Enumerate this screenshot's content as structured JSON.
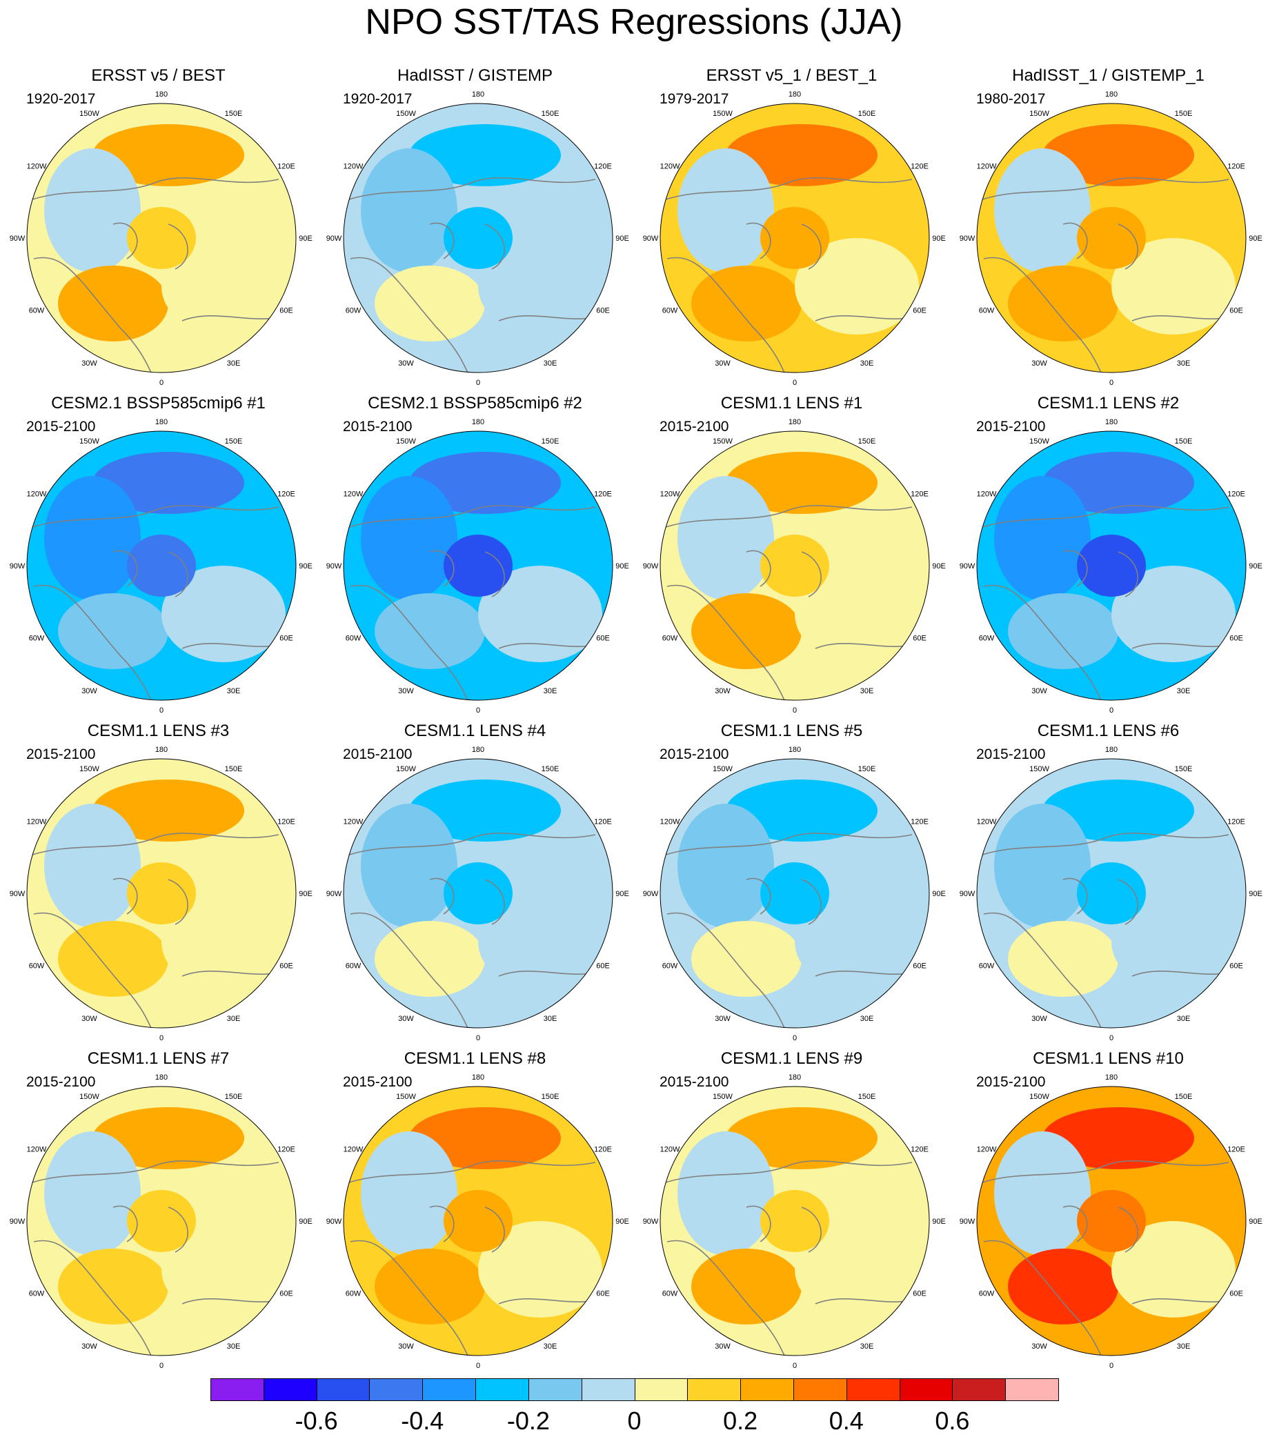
{
  "title": "NPO SST/TAS Regressions (JJA)",
  "lon_labels": [
    "180",
    "150E",
    "120E",
    "90E",
    "60E",
    "30E",
    "0",
    "30W",
    "60W",
    "90W",
    "120W",
    "150W"
  ],
  "panels": [
    {
      "title": "ERSST v5 / BEST",
      "period": "1920-2017",
      "mean_level": 0.05
    },
    {
      "title": "HadISST / GISTEMP",
      "period": "1920-2017",
      "mean_level": -0.05
    },
    {
      "title": "ERSST v5_1 / BEST_1",
      "period": "1979-2017",
      "mean_level": 0.1
    },
    {
      "title": "HadISST_1 / GISTEMP_1",
      "period": "1980-2017",
      "mean_level": 0.1
    },
    {
      "title": "CESM2.1 BSSP585cmip6 #1",
      "period": "2015-2100",
      "mean_level": -0.25
    },
    {
      "title": "CESM2.1 BSSP585cmip6 #2",
      "period": "2015-2100",
      "mean_level": -0.3
    },
    {
      "title": "CESM1.1 LENS #1",
      "period": "2015-2100",
      "mean_level": 0.05
    },
    {
      "title": "CESM1.1 LENS #2",
      "period": "2015-2100",
      "mean_level": -0.3
    },
    {
      "title": "CESM1.1 LENS #3",
      "period": "2015-2100",
      "mean_level": 0.0
    },
    {
      "title": "CESM1.1 LENS #4",
      "period": "2015-2100",
      "mean_level": -0.05
    },
    {
      "title": "CESM1.1 LENS #5",
      "period": "2015-2100",
      "mean_level": -0.05
    },
    {
      "title": "CESM1.1 LENS #6",
      "period": "2015-2100",
      "mean_level": -0.05
    },
    {
      "title": "CESM1.1 LENS #7",
      "period": "2015-2100",
      "mean_level": 0.0
    },
    {
      "title": "CESM1.1 LENS #8",
      "period": "2015-2100",
      "mean_level": 0.1
    },
    {
      "title": "CESM1.1 LENS #9",
      "period": "2015-2100",
      "mean_level": 0.05
    },
    {
      "title": "CESM1.1 LENS #10",
      "period": "2015-2100",
      "mean_level": 0.25
    }
  ],
  "colorbar": {
    "levels": [
      -0.7,
      -0.6,
      -0.5,
      -0.4,
      -0.3,
      -0.2,
      -0.1,
      0,
      0.1,
      0.2,
      0.3,
      0.4,
      0.5,
      0.6,
      0.7
    ],
    "colors": [
      "#8A1EF0",
      "#1E00FF",
      "#2850F0",
      "#3C78F0",
      "#1E96FF",
      "#00C3FF",
      "#78C8F0",
      "#B4DCF0",
      "#FAF5A0",
      "#FFD228",
      "#FFAA00",
      "#FF7800",
      "#FF3200",
      "#E60000",
      "#C81E1E",
      "#FFB4B4"
    ],
    "tick_labels": [
      "-0.6",
      "-0.4",
      "-0.2",
      "0",
      "0.2",
      "0.4",
      "0.6"
    ],
    "tick_levels": [
      -0.6,
      -0.4,
      -0.2,
      0,
      0.2,
      0.4,
      0.6
    ]
  }
}
